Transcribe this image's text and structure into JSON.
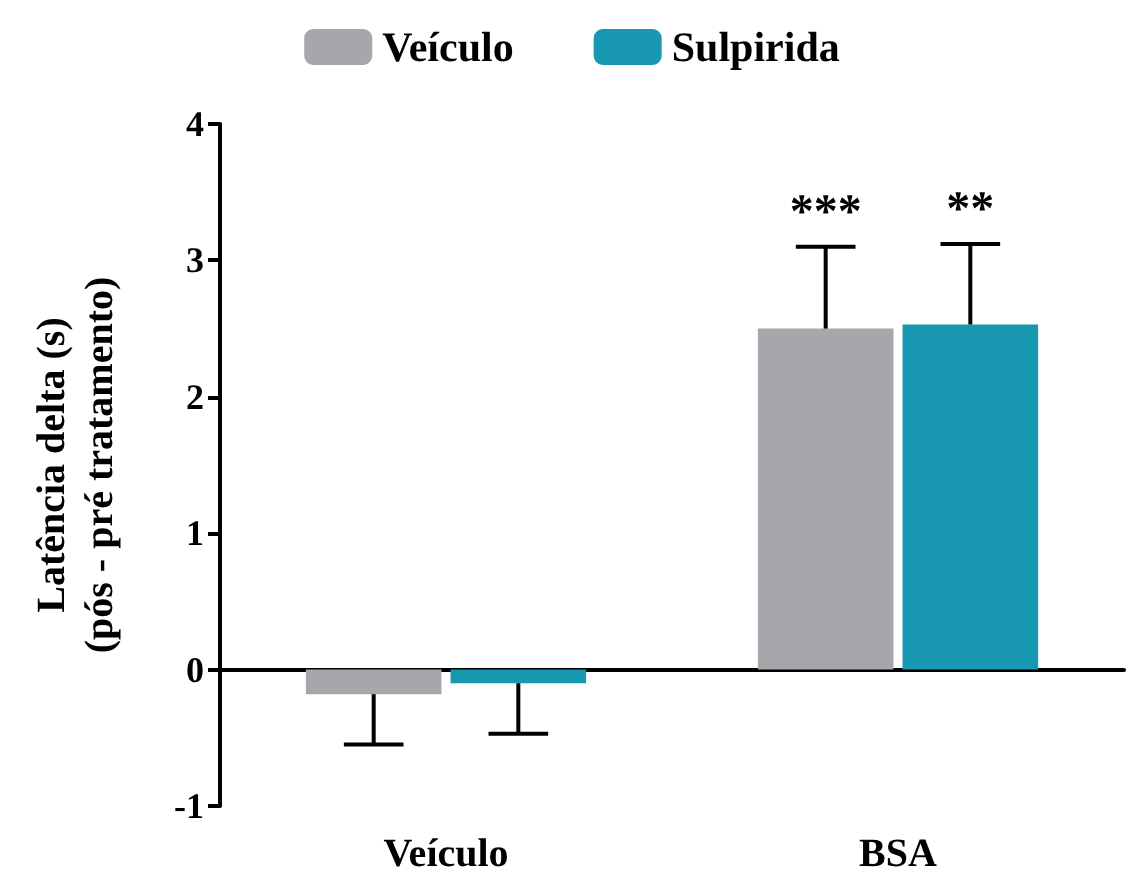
{
  "chart_data": {
    "type": "bar",
    "ylabel": "Latência delta (s)\n(pós - pré tratamento)",
    "categories": [
      "Veículo",
      "BSA"
    ],
    "series": [
      {
        "name": "Veículo",
        "color": "#a7a6ab",
        "values": [
          -0.18,
          2.5
        ],
        "errors": [
          [
            -0.55,
            -0.18
          ],
          [
            2.5,
            3.1
          ]
        ]
      },
      {
        "name": "Sulpirida",
        "color": "#1798b0",
        "values": [
          -0.1,
          2.53
        ],
        "errors": [
          [
            -0.47,
            -0.1
          ],
          [
            2.53,
            3.12
          ]
        ]
      }
    ],
    "ylim": [
      -1,
      4
    ],
    "yticks": [
      -1,
      0,
      1,
      2,
      3,
      4
    ],
    "legend": "top",
    "annotations": [
      "***",
      "**"
    ]
  }
}
